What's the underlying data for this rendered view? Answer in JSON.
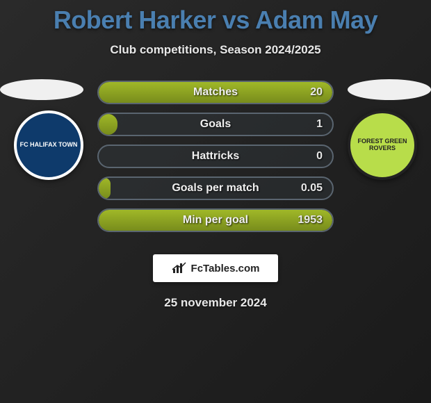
{
  "title": "Robert Harker vs Adam May",
  "subtitle": "Club competitions, Season 2024/2025",
  "date": "25 november 2024",
  "branding": "FcTables.com",
  "title_color": "#4a7fb0",
  "bar_border_color": "#5a6570",
  "bar_fill_gradient": [
    "#a0b828",
    "#788c1c"
  ],
  "text_color": "#e8e8e8",
  "crests": {
    "left": {
      "label": "FC HALIFAX TOWN",
      "bg": "#0e3a6b",
      "border": "#ffffff",
      "text": "#ffffff"
    },
    "right": {
      "label": "FOREST GREEN ROVERS",
      "bg": "#b8dd4a",
      "border": "#222222",
      "text": "#222222"
    }
  },
  "stats": [
    {
      "label": "Matches",
      "value": "20",
      "fill_pct": 100
    },
    {
      "label": "Goals",
      "value": "1",
      "fill_pct": 8
    },
    {
      "label": "Hattricks",
      "value": "0",
      "fill_pct": 0
    },
    {
      "label": "Goals per match",
      "value": "0.05",
      "fill_pct": 5
    },
    {
      "label": "Min per goal",
      "value": "1953",
      "fill_pct": 100
    }
  ]
}
